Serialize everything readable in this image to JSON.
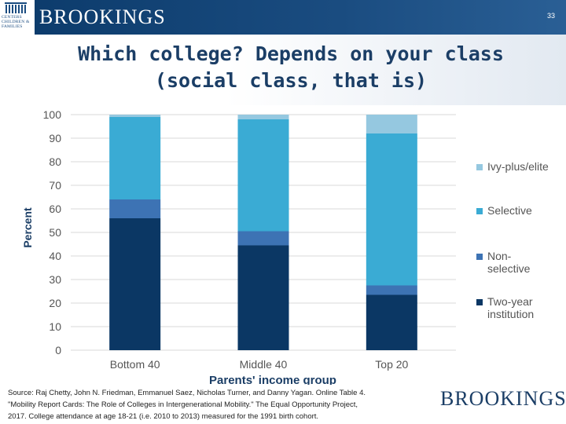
{
  "header": {
    "logo_text": "CENTERS\nCHILDREN &\nFAMILIES",
    "brand": "BROOKINGS",
    "slide_number": "33",
    "bar_color": "#0b3a6a"
  },
  "title": {
    "line1": "Which college? Depends on your class",
    "line2": "(social class, that is)"
  },
  "chart_data": {
    "type": "bar",
    "stacked": true,
    "categories": [
      "Bottom 40",
      "Middle 40",
      "Top 20"
    ],
    "series": [
      {
        "name": "Two-year institution",
        "color": "#0b3764",
        "values": [
          56,
          44.5,
          23.5
        ]
      },
      {
        "name": "Non-selective",
        "color": "#3d73b4",
        "values": [
          8,
          6,
          4
        ]
      },
      {
        "name": "Selective",
        "color": "#3aabd4",
        "values": [
          35,
          47.5,
          64.5
        ]
      },
      {
        "name": "Ivy-plus/elite",
        "color": "#95c8e0",
        "values": [
          1,
          2,
          8
        ]
      }
    ],
    "xlabel": "Parents' income group",
    "ylabel": "Percent",
    "ylim": [
      0,
      100
    ],
    "yticks": [
      0,
      10,
      20,
      30,
      40,
      50,
      60,
      70,
      80,
      90,
      100
    ],
    "grid": true,
    "legend_position": "right",
    "legend": [
      {
        "label": "Ivy-plus/elite",
        "color": "#95c8e0"
      },
      {
        "label": "Selective",
        "color": "#3aabd4"
      },
      {
        "label": "Non-selective",
        "color": "#3d73b4"
      },
      {
        "label": "Two-year institution",
        "color": "#0b3764"
      }
    ]
  },
  "footer": {
    "source_line1": "Source: Raj Chetty, John N. Friedman, Emmanuel Saez, Nicholas Turner, and Danny Yagan. Online Table 4.",
    "source_line2": "\"Mobility Report Cards: The Role of Colleges in Intergenerational Mobility.\" The Equal Opportunity Project,",
    "source_line3": "2017. College attendance at age 18-21 (i.e. 2010 to 2013) measured for the 1991 birth cohort.",
    "brand": "BROOKINGS"
  }
}
